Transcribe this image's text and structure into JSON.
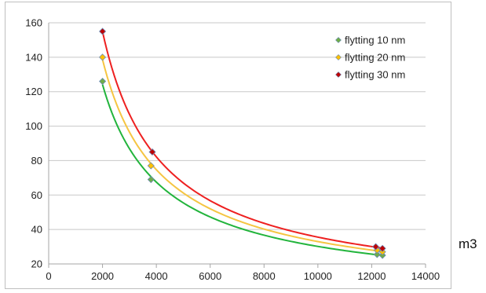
{
  "chart_data": {
    "type": "scatter",
    "xlim": [
      0,
      14000
    ],
    "ylim": [
      20,
      160
    ],
    "x_ticks": [
      0,
      2000,
      4000,
      6000,
      8000,
      10000,
      12000,
      14000
    ],
    "y_ticks": [
      20,
      40,
      60,
      80,
      100,
      120,
      140,
      160
    ],
    "grid": "horizontal",
    "legend_position": "top-right",
    "unit_label": "m3",
    "trendline": "power",
    "series": [
      {
        "name": "flytting 10 nm",
        "marker_color": "#70ad47",
        "line_color": "#22b43c",
        "points": [
          [
            2000,
            126
          ],
          [
            3800,
            69
          ],
          [
            12200,
            25.5
          ],
          [
            12400,
            25
          ]
        ]
      },
      {
        "name": "flytting 20 nm",
        "marker_color": "#ffc000",
        "line_color": "#f5c542",
        "points": [
          [
            2000,
            140
          ],
          [
            3800,
            77
          ],
          [
            12200,
            28
          ],
          [
            12400,
            27
          ]
        ]
      },
      {
        "name": "flytting 30 nm",
        "marker_color": "#c00000",
        "line_color": "#ee2020",
        "points": [
          [
            2000,
            155
          ],
          [
            3850,
            85
          ],
          [
            12150,
            30
          ],
          [
            12400,
            29
          ]
        ]
      }
    ]
  }
}
